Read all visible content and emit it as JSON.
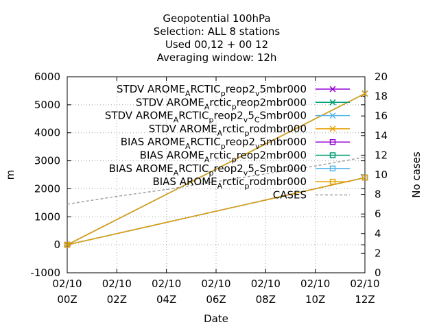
{
  "chart_data": {
    "type": "line",
    "title_lines": [
      "Geopotential 100hPa",
      "Selection: ALL      8 stations",
      "Used  00,12  + 00 12",
      "Averaging window: 12h"
    ],
    "xlabel": "Date",
    "ylabel": "m",
    "y2label": "No cases",
    "x_ticks": [
      [
        "02/10",
        "00Z"
      ],
      [
        "02/10",
        "02Z"
      ],
      [
        "02/10",
        "04Z"
      ],
      [
        "02/10",
        "06Z"
      ],
      [
        "02/10",
        "08Z"
      ],
      [
        "02/10",
        "10Z"
      ],
      [
        "02/10",
        "12Z"
      ]
    ],
    "x_tick_values": [
      0,
      2,
      4,
      6,
      8,
      10,
      12
    ],
    "xlim": [
      0,
      12
    ],
    "ylim": [
      -1000,
      6000
    ],
    "y_ticks": [
      "-1000",
      "0",
      "1000",
      "2000",
      "3000",
      "4000",
      "5000",
      "6000"
    ],
    "y2lim": [
      0,
      20
    ],
    "y2_ticks": [
      "0",
      "2",
      "4",
      "6",
      "8",
      "10",
      "12",
      "14",
      "16",
      "18",
      "20"
    ],
    "grid": true,
    "legend_position": "top-right",
    "series": [
      {
        "name": "STDV AROME_ARCTIC_preop2_v5mbr000",
        "axis": "y",
        "color": "#9400d3",
        "marker": "x",
        "x": [
          0,
          12
        ],
        "y": [
          0,
          5400
        ]
      },
      {
        "name": "STDV AROME_Arctic_preop2mbr000",
        "axis": "y",
        "color": "#009e73",
        "marker": "x",
        "x": [
          0,
          12
        ],
        "y": [
          0,
          5400
        ]
      },
      {
        "name": "STDV AROME_ARCTIC_preop2_v5_CSmbr000",
        "axis": "y",
        "color": "#56b4e9",
        "marker": "x",
        "x": [
          0,
          12
        ],
        "y": [
          0,
          5400
        ]
      },
      {
        "name": "STDV AROME_Arctic_prodmbr000",
        "axis": "y",
        "color": "#e69f00",
        "marker": "x",
        "x": [
          0,
          12
        ],
        "y": [
          0,
          5400
        ]
      },
      {
        "name": "BIAS AROME_ARCTIC_preop2_v5mbr000",
        "axis": "y",
        "color": "#9400d3",
        "marker": "square",
        "x": [
          0,
          12
        ],
        "y": [
          0,
          2400
        ]
      },
      {
        "name": "BIAS AROME_Arctic_preop2mbr000",
        "axis": "y",
        "color": "#009e73",
        "marker": "square",
        "x": [
          0,
          12
        ],
        "y": [
          0,
          2400
        ]
      },
      {
        "name": "BIAS AROME_ARCTIC_preop2_v5_CSmbr000",
        "axis": "y",
        "color": "#56b4e9",
        "marker": "square",
        "x": [
          0,
          12
        ],
        "y": [
          0,
          2400
        ]
      },
      {
        "name": "BIAS AROME_Arctic_prodmbr000",
        "axis": "y",
        "color": "#e69f00",
        "marker": "square",
        "x": [
          0,
          12
        ],
        "y": [
          0,
          2400
        ]
      },
      {
        "name": "CASES",
        "axis": "y2",
        "color": "#a0a0a0",
        "marker": "none",
        "dashed": true,
        "x": [
          0,
          2,
          4,
          6,
          8,
          10,
          12
        ],
        "y": [
          7,
          7.8,
          8.5,
          9.3,
          10.1,
          10.9,
          11.8
        ]
      }
    ],
    "legend_entries": [
      {
        "parts": [
          [
            "STDV AROME",
            ""
          ],
          [
            "A",
            "sub"
          ],
          [
            "RCTIC",
            ""
          ],
          [
            "p",
            "sub"
          ],
          [
            "reop2",
            ""
          ],
          [
            "v",
            "sub"
          ],
          [
            "5mbr000",
            ""
          ]
        ]
      },
      {
        "parts": [
          [
            "STDV AROME",
            ""
          ],
          [
            "A",
            "sub"
          ],
          [
            "rctic",
            ""
          ],
          [
            "p",
            "sub"
          ],
          [
            "reop2mbr000",
            ""
          ]
        ]
      },
      {
        "parts": [
          [
            "STDV AROME",
            ""
          ],
          [
            "A",
            "sub"
          ],
          [
            "RCTIC",
            ""
          ],
          [
            "p",
            "sub"
          ],
          [
            "reop2",
            ""
          ],
          [
            "v",
            "sub"
          ],
          [
            "5",
            ""
          ],
          [
            "C",
            "sub"
          ],
          [
            "Smbr000",
            ""
          ]
        ]
      },
      {
        "parts": [
          [
            "STDV AROME",
            ""
          ],
          [
            "A",
            "sub"
          ],
          [
            "rctic",
            ""
          ],
          [
            "p",
            "sub"
          ],
          [
            "rodmbr000",
            ""
          ]
        ]
      },
      {
        "parts": [
          [
            "BIAS AROME",
            ""
          ],
          [
            "A",
            "sub"
          ],
          [
            "RCTIC",
            ""
          ],
          [
            "p",
            "sub"
          ],
          [
            "reop2",
            ""
          ],
          [
            "v",
            "sub"
          ],
          [
            "5mbr000",
            ""
          ]
        ]
      },
      {
        "parts": [
          [
            "BIAS AROME",
            ""
          ],
          [
            "A",
            "sub"
          ],
          [
            "rctic",
            ""
          ],
          [
            "p",
            "sub"
          ],
          [
            "reop2mbr000",
            ""
          ]
        ]
      },
      {
        "parts": [
          [
            "BIAS AROME",
            ""
          ],
          [
            "A",
            "sub"
          ],
          [
            "RCTIC",
            ""
          ],
          [
            "p",
            "sub"
          ],
          [
            "reop2",
            ""
          ],
          [
            "v",
            "sub"
          ],
          [
            "5",
            ""
          ],
          [
            "C",
            "sub"
          ],
          [
            "Smbr000",
            ""
          ]
        ]
      },
      {
        "parts": [
          [
            "BIAS AROME",
            ""
          ],
          [
            "A",
            "sub"
          ],
          [
            "rctic",
            ""
          ],
          [
            "p",
            "sub"
          ],
          [
            "rodmbr000",
            ""
          ]
        ]
      },
      {
        "parts": [
          [
            "CASES",
            ""
          ]
        ]
      }
    ]
  }
}
